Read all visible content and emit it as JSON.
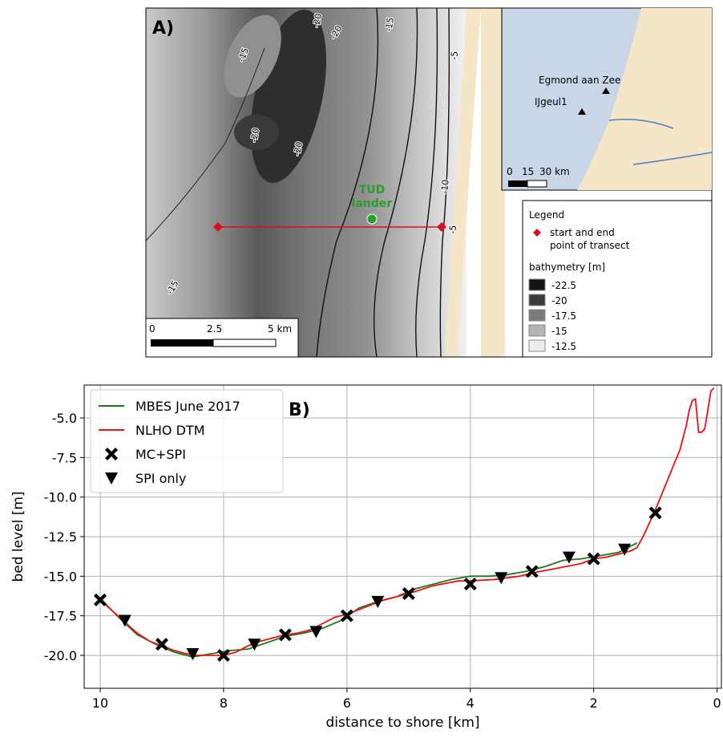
{
  "map": {
    "panel_label": "A)",
    "contour_labels": [
      "-20",
      "-20",
      "-15",
      "-15",
      "-20",
      "-20",
      "-5",
      "-10",
      "-5",
      "-15"
    ],
    "site_label": [
      "TUD",
      "lander"
    ],
    "scale": [
      "0",
      "2.5",
      "5 km"
    ],
    "inset": {
      "places": [
        "Egmond aan Zee",
        "IJgeul1"
      ],
      "scale": [
        "0",
        "15",
        "30 km"
      ]
    },
    "legend": {
      "title": "Legend",
      "transect": [
        "start and end",
        "point of transect"
      ],
      "bathymetry_title": "bathymetry [m]",
      "classes": [
        {
          "label": "-22.5",
          "color": "#141414"
        },
        {
          "label": "-20",
          "color": "#3c3c3c"
        },
        {
          "label": "-17.5",
          "color": "#7a7a7a"
        },
        {
          "label": "-15",
          "color": "#b4b4b4"
        },
        {
          "label": "-12.5",
          "color": "#ececec"
        }
      ]
    }
  },
  "chart_data": {
    "type": "line",
    "annotation": "B)",
    "xlabel": "distance to shore [km]",
    "ylabel": "bed level [m]",
    "xlim": [
      10.26,
      -0.07
    ],
    "ylim": [
      -22.08,
      -2.92
    ],
    "xticks": [
      10,
      8,
      6,
      4,
      2,
      0
    ],
    "yticks": [
      {
        "value": -20,
        "label": "-20.0"
      },
      -17.5,
      {
        "value": -15,
        "label": "-15.0"
      },
      -12.5,
      {
        "value": -10,
        "label": "-10.0"
      },
      -7.5,
      {
        "value": -5,
        "label": "-5.0"
      }
    ],
    "grid": true,
    "legend": "upper left",
    "series": [
      {
        "name": "MBES June 2017",
        "color": "#1a7a1a",
        "mode": "line",
        "x": [
          10,
          9.7,
          9.4,
          9.1,
          8.8,
          8.5,
          8.2,
          7.9,
          7.6,
          7.3,
          7,
          6.7,
          6.4,
          6.1,
          5.8,
          5.5,
          5.2,
          4.9,
          4.6,
          4.3,
          4,
          3.7,
          3.4,
          3.1,
          2.8,
          2.5,
          2.2,
          1.9,
          1.6,
          1.3
        ],
        "values": [
          -16.4,
          -17.6,
          -18.7,
          -19.3,
          -19.8,
          -20.1,
          -19.9,
          -19.7,
          -19.6,
          -19.2,
          -18.8,
          -18.6,
          -18.3,
          -17.8,
          -17.0,
          -16.6,
          -16.3,
          -15.8,
          -15.5,
          -15.2,
          -15.0,
          -15.0,
          -14.9,
          -14.7,
          -14.4,
          -14.0,
          -13.9,
          -13.7,
          -13.5,
          -12.9
        ]
      },
      {
        "name": "NLHO DTM",
        "color": "#ee1111",
        "mode": "line",
        "x": [
          10,
          9.8,
          9.6,
          9.4,
          9.2,
          9,
          8.8,
          8.6,
          8.4,
          8.2,
          8,
          7.8,
          7.6,
          7.4,
          7.2,
          7,
          6.8,
          6.6,
          6.4,
          6.2,
          6,
          5.8,
          5.6,
          5.4,
          5.2,
          5,
          4.6,
          4.2,
          4,
          3.6,
          3.2,
          3,
          2.6,
          2.2,
          2,
          1.8,
          1.6,
          1.4,
          1.3,
          1.2,
          1,
          0.8,
          0.6,
          0.5,
          0.45,
          0.4,
          0.35,
          0.3,
          0.25,
          0.2,
          0.15,
          0.1,
          0.05
        ],
        "values": [
          -16.5,
          -17.2,
          -17.9,
          -18.6,
          -19.1,
          -19.4,
          -19.7,
          -19.9,
          -20.0,
          -20.0,
          -20.0,
          -19.8,
          -19.4,
          -19.1,
          -18.9,
          -18.7,
          -18.6,
          -18.4,
          -18.0,
          -17.6,
          -17.4,
          -17.1,
          -16.8,
          -16.5,
          -16.3,
          -16.1,
          -15.6,
          -15.3,
          -15.3,
          -15.2,
          -15.0,
          -14.8,
          -14.5,
          -14.2,
          -13.9,
          -13.8,
          -13.6,
          -13.4,
          -13.2,
          -12.5,
          -10.8,
          -8.9,
          -7.0,
          -5.5,
          -4.5,
          -3.9,
          -3.8,
          -5.9,
          -5.9,
          -5.7,
          -4.5,
          -3.3,
          -3.1
        ]
      },
      {
        "name": "MC+SPI",
        "color": "#000000",
        "mode": "marker",
        "marker": "x",
        "x": [
          10,
          9,
          8,
          7,
          6,
          5,
          4,
          3,
          2,
          1
        ],
        "values": [
          -16.5,
          -19.3,
          -20.0,
          -18.7,
          -17.5,
          -16.1,
          -15.5,
          -14.7,
          -13.9,
          -11.0
        ]
      },
      {
        "name": "SPI only",
        "color": "#000000",
        "mode": "marker",
        "marker": "triangle",
        "x": [
          9.6,
          8.5,
          7.5,
          6.5,
          5.5,
          3.5,
          2.4,
          1.5
        ],
        "values": [
          -17.8,
          -19.9,
          -19.3,
          -18.5,
          -16.6,
          -15.1,
          -13.8,
          -13.3
        ]
      }
    ]
  }
}
